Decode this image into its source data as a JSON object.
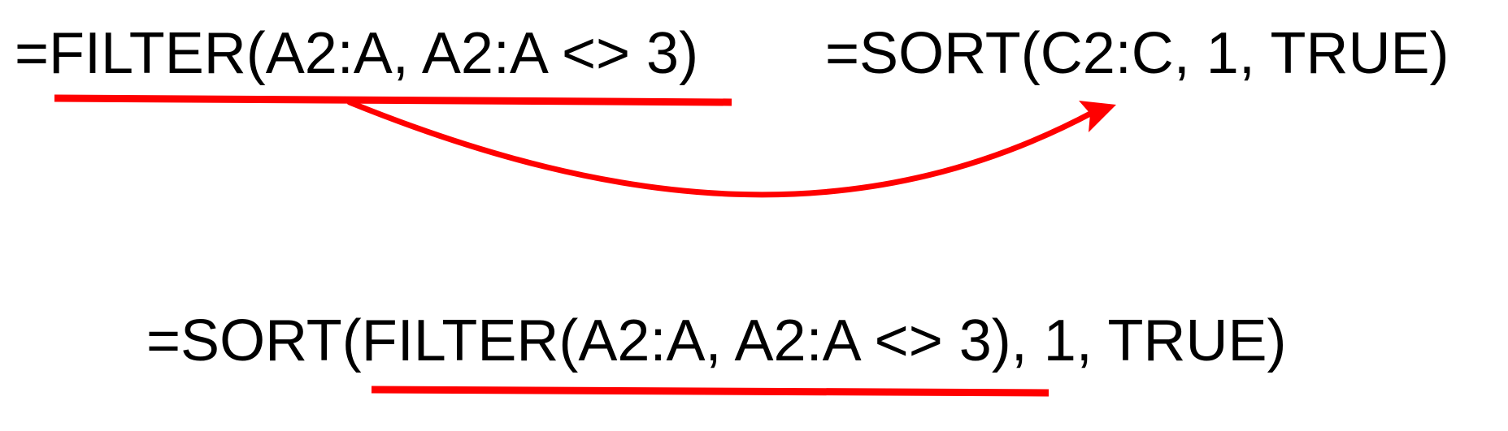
{
  "formulas": {
    "filter": "=FILTER(A2:A, A2:A <> 3)",
    "sort": "=SORT(C2:C, 1, TRUE)",
    "combined": "=SORT(FILTER(A2:A, A2:A <> 3), 1, TRUE)"
  },
  "colors": {
    "text": "#000000",
    "annotation": "#ff0000"
  }
}
